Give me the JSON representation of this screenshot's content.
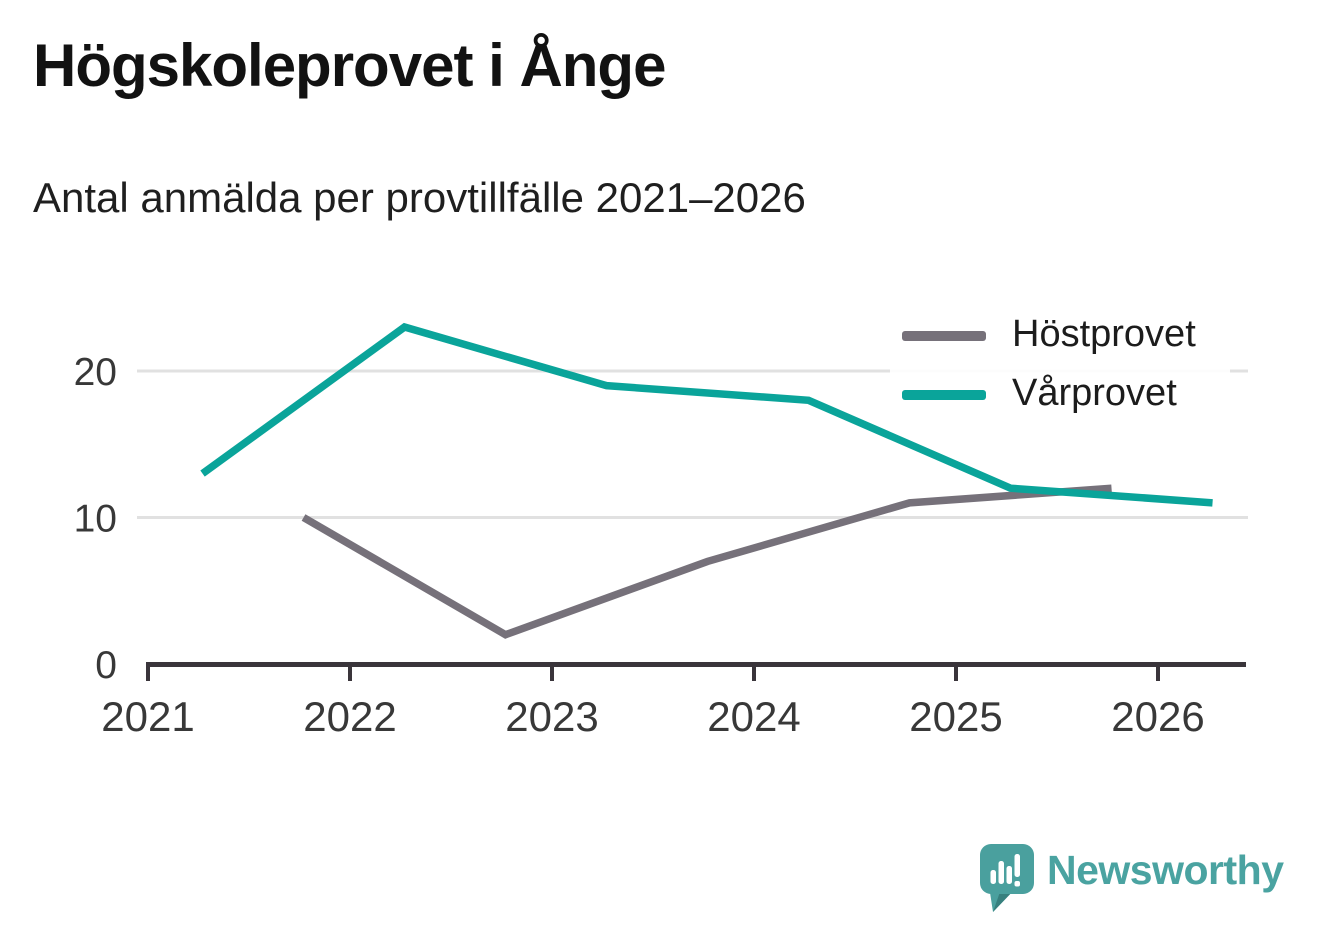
{
  "header": {
    "title": "Högskoleprovet i Ånge",
    "subtitle": "Antal anmälda per provtillfälle 2021–2026"
  },
  "chart_data": {
    "type": "line",
    "title": "Högskoleprovet i Ånge",
    "subtitle": "Antal anmälda per provtillfälle 2021–2026",
    "x_axis": {
      "ticks": [
        2021,
        2022,
        2023,
        2024,
        2025,
        2026
      ],
      "range": [
        2021,
        2026.45
      ]
    },
    "y_axis": {
      "ticks": [
        0,
        10,
        20
      ],
      "range": [
        0,
        24.6
      ],
      "grid": "horizontal gridlines at 10 and 20"
    },
    "axis_color": "#3a353b",
    "grid_color": "#e1e1e1",
    "tick_color": "#383838",
    "legend_position": "top-right",
    "series": [
      {
        "name": "Höstprovet",
        "color": "#76717a",
        "x_offset": 0.77,
        "points": [
          {
            "year": 2021,
            "value": 10
          },
          {
            "year": 2022,
            "value": 2
          },
          {
            "year": 2023,
            "value": 7
          },
          {
            "year": 2024,
            "value": 11
          },
          {
            "year": 2025,
            "value": 12
          }
        ]
      },
      {
        "name": "Vårprovet",
        "color": "#0aa49a",
        "x_offset": 0.27,
        "points": [
          {
            "year": 2021,
            "value": 13
          },
          {
            "year": 2022,
            "value": 23
          },
          {
            "year": 2023,
            "value": 19
          },
          {
            "year": 2024,
            "value": 18
          },
          {
            "year": 2025,
            "value": 12
          },
          {
            "year": 2026,
            "value": 11
          }
        ]
      }
    ]
  },
  "footer": {
    "brand": "Newsworthy",
    "brand_color": "#4aa3a1",
    "logo_color": "#4aa09e",
    "logo_fold_color": "#37807e"
  }
}
